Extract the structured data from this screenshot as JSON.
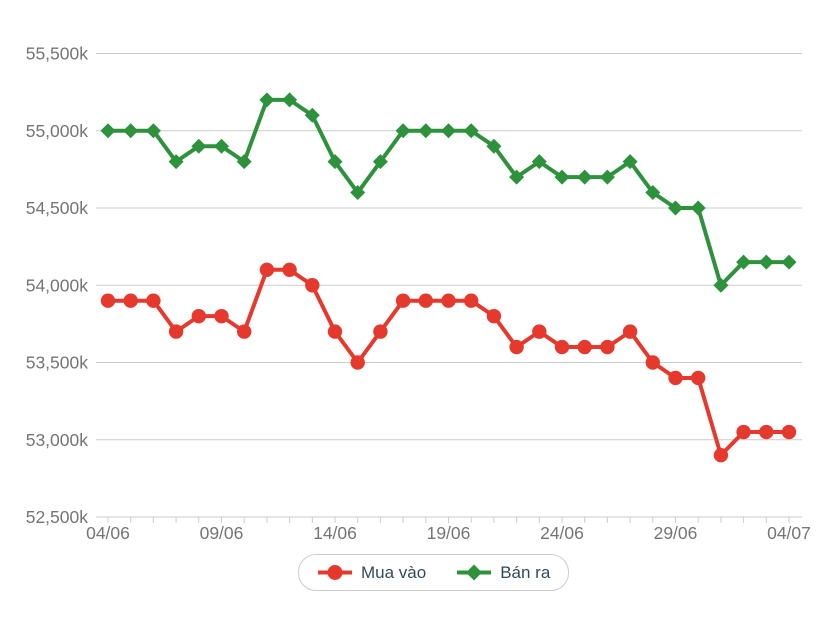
{
  "chart_data": {
    "type": "line",
    "x": [
      "04/06",
      "05/06",
      "06/06",
      "07/06",
      "08/06",
      "09/06",
      "10/06",
      "11/06",
      "12/06",
      "13/06",
      "14/06",
      "15/06",
      "16/06",
      "17/06",
      "18/06",
      "19/06",
      "20/06",
      "21/06",
      "22/06",
      "23/06",
      "24/06",
      "25/06",
      "26/06",
      "27/06",
      "28/06",
      "29/06",
      "30/06",
      "01/07",
      "02/07",
      "03/07",
      "04/07"
    ],
    "series": [
      {
        "id": "mua-vao",
        "name": "Mua vào",
        "color": "#e6392e",
        "marker": "circle",
        "values": [
          53900,
          53900,
          53900,
          53700,
          53800,
          53800,
          53700,
          54100,
          54100,
          54000,
          53700,
          53500,
          53700,
          53900,
          53900,
          53900,
          53900,
          53800,
          53600,
          53700,
          53600,
          53600,
          53600,
          53700,
          53500,
          53400,
          53400,
          52900,
          53050,
          53050,
          53050
        ]
      },
      {
        "id": "ban-ra",
        "name": "Bán ra",
        "color": "#2e913c",
        "marker": "diamond",
        "values": [
          55000,
          55000,
          55000,
          54800,
          54900,
          54900,
          54800,
          55200,
          55200,
          55100,
          54800,
          54600,
          54800,
          55000,
          55000,
          55000,
          55000,
          54900,
          54700,
          54800,
          54700,
          54700,
          54700,
          54800,
          54600,
          54500,
          54500,
          54000,
          54150,
          54150,
          54150
        ]
      }
    ],
    "ylim": [
      52500,
      55500
    ],
    "y_ticks": [
      {
        "value": 52500,
        "label": "52,500k"
      },
      {
        "value": 53000,
        "label": "53,000k"
      },
      {
        "value": 53500,
        "label": "53,500k"
      },
      {
        "value": 54000,
        "label": "54,000k"
      },
      {
        "value": 54500,
        "label": "54,500k"
      },
      {
        "value": 55000,
        "label": "55,000k"
      },
      {
        "value": 55500,
        "label": "55,500k"
      }
    ],
    "x_ticks": [
      {
        "index": 0,
        "label": "04/06"
      },
      {
        "index": 5,
        "label": "09/06"
      },
      {
        "index": 10,
        "label": "14/06"
      },
      {
        "index": 15,
        "label": "19/06"
      },
      {
        "index": 20,
        "label": "24/06"
      },
      {
        "index": 25,
        "label": "29/06"
      },
      {
        "index": 30,
        "label": "04/07"
      }
    ],
    "grid": true,
    "legend_position": "bottom"
  },
  "colors": {
    "grid": "#cccccc",
    "axis_label": "#757575",
    "legend_text": "#334a5e",
    "legend_border": "#c9ccd1",
    "background": "#ffffff"
  }
}
